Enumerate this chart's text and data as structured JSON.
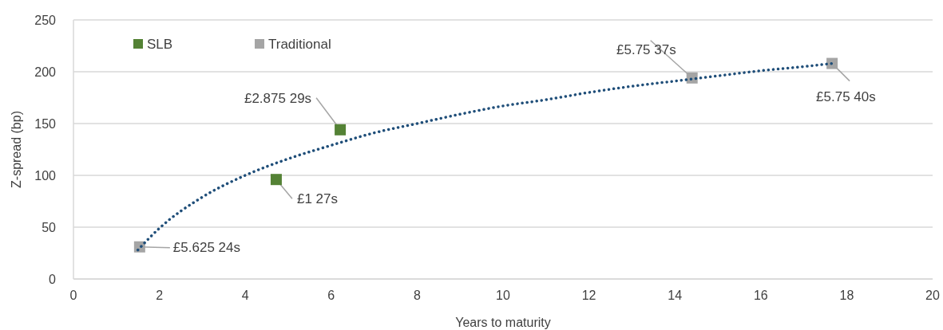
{
  "chart_data": {
    "type": "scatter",
    "xlabel": "Years to maturity",
    "ylabel": "Z-spread (bp)",
    "xlim": [
      0,
      20
    ],
    "xticks": [
      0,
      2,
      4,
      6,
      8,
      10,
      12,
      14,
      16,
      18,
      20
    ],
    "ylim": [
      0,
      250
    ],
    "yticks": [
      0,
      50,
      100,
      150,
      200,
      250
    ],
    "grid": "y",
    "legend": "top left",
    "marker": "square",
    "series": [
      {
        "name": "SLB",
        "color": "#548235",
        "x": [
          4.72,
          6.21
        ],
        "values": [
          96,
          144
        ]
      },
      {
        "name": "Traditional",
        "color": "#a5a5a5",
        "x": [
          1.54,
          14.4,
          17.66
        ],
        "values": [
          31,
          194,
          208
        ]
      },
      {
        "type": "line",
        "color": "#1f4e79",
        "line_style": "dotted",
        "marker": "none",
        "x": [
          1.5,
          2,
          3,
          4,
          5,
          6,
          7,
          8,
          9,
          10,
          11,
          12,
          13,
          14,
          15,
          16,
          17,
          17.66
        ],
        "values": [
          28,
          49,
          79,
          100,
          116,
          129,
          141,
          150,
          159,
          167,
          173,
          180,
          186,
          191,
          196,
          201,
          205,
          208
        ]
      }
    ],
    "annotations": [
      {
        "text": "£5.625 24s",
        "x": 1.54,
        "y": 31
      },
      {
        "text": "£1 27s",
        "x": 4.72,
        "y": 96
      },
      {
        "text": "£2.875 29s",
        "x": 6.21,
        "y": 144
      },
      {
        "text": "£5.75 37s",
        "x": 14.4,
        "y": 194
      },
      {
        "text": "£5.75 40s",
        "x": 17.66,
        "y": 208
      }
    ]
  }
}
